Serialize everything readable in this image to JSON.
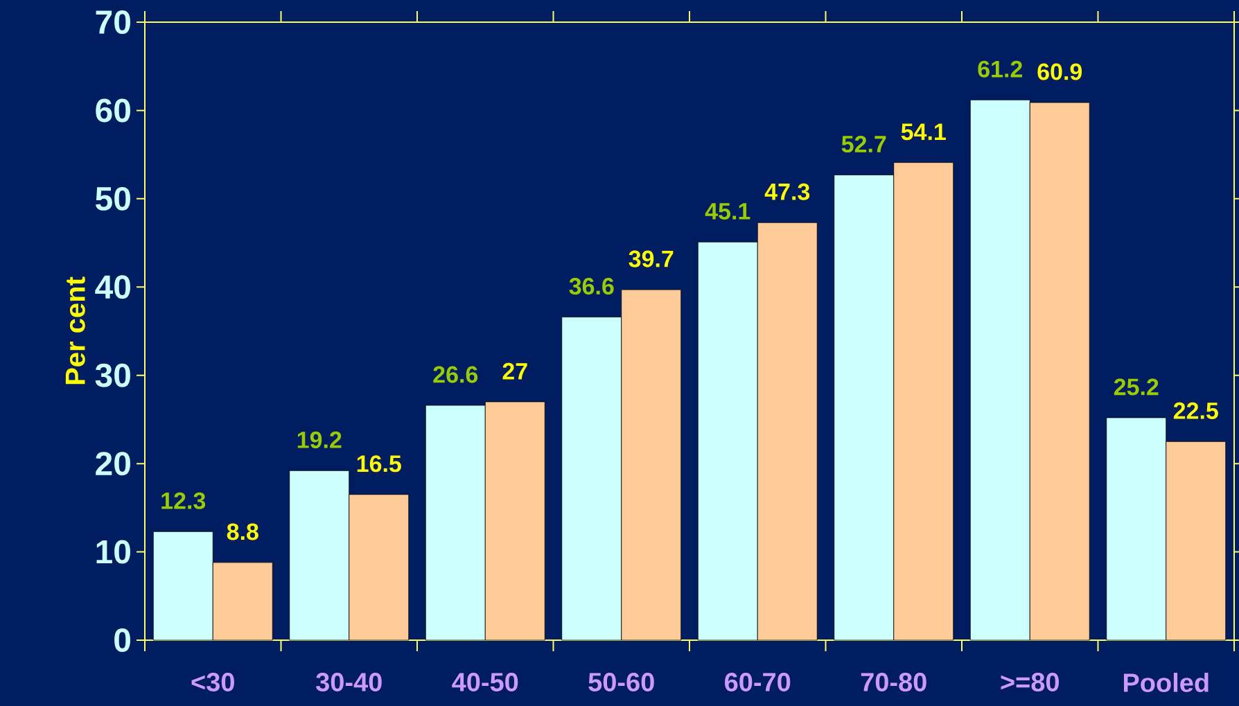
{
  "chart_data": {
    "type": "bar",
    "ylabel": "Per cent",
    "categories": [
      "<30",
      "30-40",
      "40-50",
      "50-60",
      "60-70",
      "70-80",
      ">=80",
      "Pooled"
    ],
    "series": [
      {
        "color": "#ccffff",
        "values": [
          12.3,
          19.2,
          26.6,
          36.6,
          45.1,
          52.7,
          61.2,
          25.2
        ]
      },
      {
        "color": "#ffcc99",
        "values": [
          8.8,
          16.5,
          27,
          39.7,
          47.3,
          54.1,
          60.9,
          22.5
        ]
      }
    ],
    "ylim": [
      0,
      70
    ],
    "yticks": [
      0,
      10,
      20,
      30,
      40,
      50,
      60,
      70
    ],
    "data_labels": true
  }
}
